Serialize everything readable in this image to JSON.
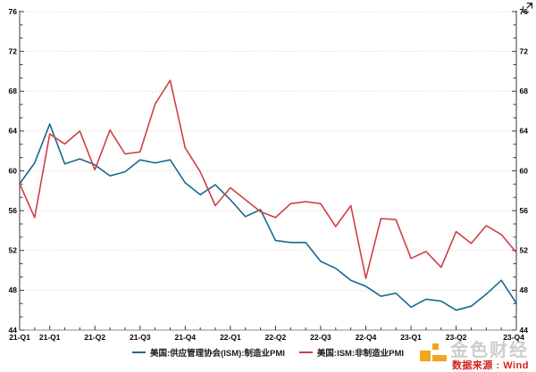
{
  "chart_data": {
    "type": "line",
    "title": "",
    "xlabel": "",
    "ylabel": "",
    "ylim": [
      44,
      76
    ],
    "y_ticks": [
      44,
      48,
      52,
      56,
      60,
      64,
      68,
      72,
      76
    ],
    "y_minor_ticks_per_interval": 2,
    "grid": "horizontal-dotted",
    "grid_color": "#e0e0e0",
    "axis_color": "#3a3a3a",
    "bottom_axis_color": "#8a8a8a",
    "x_tick_labels": [
      "21-Q1",
      "21-Q1",
      "21-Q2",
      "21-Q3",
      "21-Q4",
      "22-Q1",
      "22-Q2",
      "22-Q3",
      "22-Q4",
      "23-Q1",
      "23-Q2",
      "23-Q4"
    ],
    "x_tick_month_indices": [
      0,
      2,
      5,
      8,
      11,
      14,
      17,
      20,
      23,
      26,
      29,
      33
    ],
    "legend_position": "bottom-center",
    "series": [
      {
        "name": "美国:供应管理协会(ISM):制造业PMI",
        "color": "#17698f",
        "values": [
          58.7,
          60.8,
          64.7,
          60.7,
          61.2,
          60.6,
          59.5,
          59.9,
          61.1,
          60.8,
          61.1,
          58.8,
          57.6,
          58.6,
          57.1,
          55.4,
          56.1,
          53.0,
          52.8,
          52.8,
          50.9,
          50.2,
          49.0,
          48.4,
          47.4,
          47.7,
          46.3,
          47.1,
          46.9,
          46.0,
          46.4,
          47.6,
          49.0,
          46.7
        ]
      },
      {
        "name": "美国:ISM:非制造业PMI",
        "color": "#cf4046",
        "values": [
          58.7,
          55.3,
          63.7,
          62.7,
          64.0,
          60.1,
          64.1,
          61.7,
          61.9,
          66.7,
          69.1,
          62.3,
          59.9,
          56.5,
          58.3,
          57.1,
          55.9,
          55.3,
          56.7,
          56.9,
          56.7,
          54.4,
          56.5,
          49.2,
          55.2,
          55.1,
          51.2,
          51.9,
          50.3,
          53.9,
          52.7,
          54.5,
          53.6,
          51.8
        ]
      }
    ]
  },
  "icons": {
    "top_right": "expand-icon"
  },
  "watermark": {
    "brand": "金色财经",
    "brand_color": "#cdcdcd",
    "logo_color": "#f2a51e",
    "source": "数据来源 : Wind",
    "source_color": "#d6211a"
  }
}
